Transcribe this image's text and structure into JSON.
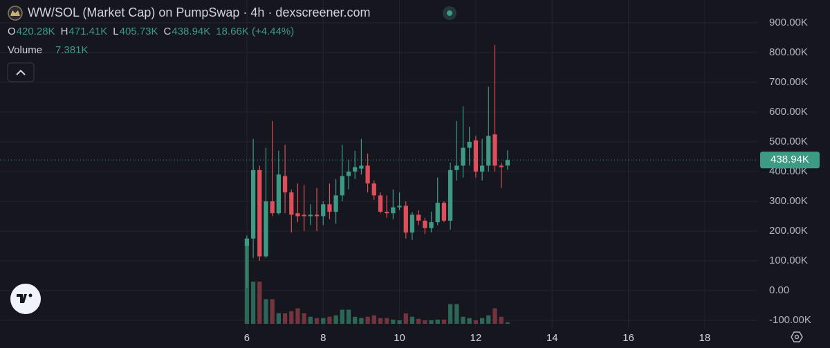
{
  "chart_data": {
    "type": "candlestick",
    "title": "WW/SOL (Market Cap) on PumpSwap · 4h · dexscreener.com",
    "ohlc_legend": [
      {
        "label": "O",
        "value": "420.28K"
      },
      {
        "label": "H",
        "value": "471.41K"
      },
      {
        "label": "L",
        "value": "405.73K"
      },
      {
        "label": "C",
        "value": "438.94K"
      }
    ],
    "change": "18.66K (+4.44%)",
    "volume_label": "Volume",
    "volume_value": "7.381K",
    "up_color": "#3d9b83",
    "down_color": "#dc4f5b",
    "up_volume_color": "#2c6659",
    "down_volume_color": "#73343e",
    "grid": true,
    "xlim": [
      -0.47,
      19.38
    ],
    "xticks": [
      6,
      8,
      10,
      12,
      14,
      16,
      18
    ],
    "ylim": [
      -127900,
      976700
    ],
    "yticks": [
      {
        "value": 900000,
        "label": "900.00K"
      },
      {
        "value": 800000,
        "label": "800.00K"
      },
      {
        "value": 700000,
        "label": "700.00K"
      },
      {
        "value": 600000,
        "label": "600.00K"
      },
      {
        "value": 500000,
        "label": "500.00K"
      },
      {
        "value": 400000,
        "label": "400.00K"
      },
      {
        "value": 300000,
        "label": "300.00K"
      },
      {
        "value": 200000,
        "label": "200.00K"
      },
      {
        "value": 100000,
        "label": "100.00K"
      },
      {
        "value": 0,
        "label": "0.00"
      },
      {
        "value": -100000,
        "label": "-100.00K"
      }
    ],
    "last_price": {
      "value": 438940,
      "label": "438.94K"
    },
    "x": [
      6,
      6.167,
      6.333,
      6.5,
      6.667,
      6.833,
      7,
      7.167,
      7.333,
      7.5,
      7.667,
      7.833,
      8,
      8.167,
      8.333,
      8.5,
      8.667,
      8.833,
      9,
      9.167,
      9.333,
      9.5,
      9.667,
      9.833,
      10,
      10.167,
      10.333,
      10.5,
      10.667,
      10.833,
      11,
      11.167,
      11.333,
      11.5,
      11.667,
      11.833,
      12,
      12.167,
      12.333,
      12.5,
      12.667,
      12.833
    ],
    "open": [
      150000,
      175000,
      405000,
      115000,
      300000,
      260000,
      385000,
      330000,
      260000,
      255000,
      250000,
      255000,
      250000,
      290000,
      265000,
      320000,
      385000,
      400000,
      410000,
      420000,
      360000,
      320000,
      265000,
      260000,
      280000,
      285000,
      195000,
      255000,
      235000,
      210000,
      230000,
      295000,
      235000,
      405000,
      420000,
      480000,
      505000,
      400000,
      420000,
      525000,
      420000,
      420280
    ],
    "high": [
      185000,
      510000,
      420000,
      480000,
      570000,
      470000,
      490000,
      340000,
      360000,
      355000,
      290000,
      345000,
      300000,
      360000,
      375000,
      490000,
      440000,
      470000,
      510000,
      460000,
      370000,
      330000,
      320000,
      340000,
      330000,
      300000,
      265000,
      270000,
      245000,
      265000,
      380000,
      300000,
      430000,
      570000,
      620000,
      550000,
      520000,
      510000,
      685000,
      825000,
      430000,
      471410
    ],
    "low": [
      10000,
      110000,
      100000,
      110000,
      250000,
      255000,
      260000,
      195000,
      230000,
      200000,
      220000,
      200000,
      220000,
      240000,
      225000,
      300000,
      340000,
      375000,
      390000,
      330000,
      305000,
      260000,
      245000,
      240000,
      270000,
      175000,
      170000,
      220000,
      190000,
      195000,
      220000,
      230000,
      205000,
      370000,
      380000,
      420000,
      380000,
      370000,
      400000,
      400000,
      345000,
      405730
    ],
    "close": [
      175000,
      405000,
      115000,
      300000,
      260000,
      390000,
      330000,
      255000,
      250000,
      250000,
      255000,
      250000,
      290000,
      265000,
      320000,
      385000,
      400000,
      415000,
      420000,
      360000,
      320000,
      265000,
      260000,
      280000,
      285000,
      195000,
      255000,
      235000,
      210000,
      230000,
      295000,
      235000,
      405000,
      420000,
      480000,
      500000,
      400000,
      420000,
      520000,
      420000,
      415000,
      438940
    ],
    "volume": [
      417000,
      221000,
      221000,
      129000,
      129000,
      55000,
      55000,
      66000,
      81000,
      55000,
      37000,
      30000,
      30000,
      37000,
      44000,
      74000,
      74000,
      37000,
      30000,
      37000,
      44000,
      30000,
      30000,
      22000,
      18000,
      55000,
      37000,
      26000,
      18000,
      18000,
      22000,
      22000,
      103000,
      103000,
      37000,
      30000,
      18000,
      30000,
      44000,
      81000,
      37000,
      7381
    ]
  }
}
